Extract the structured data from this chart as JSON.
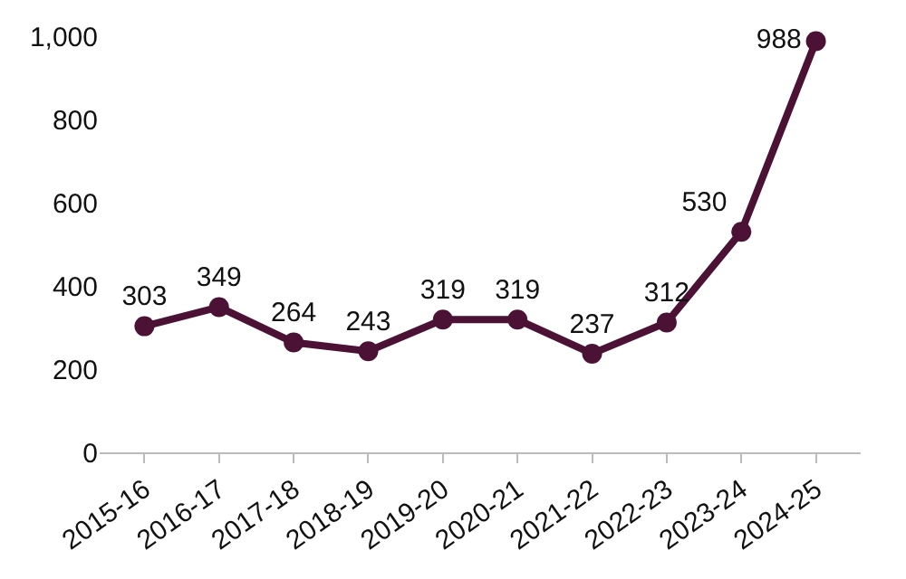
{
  "chart_data": {
    "type": "line",
    "categories": [
      "2015-16",
      "2016-17",
      "2017-18",
      "2018-19",
      "2019-20",
      "2020-21",
      "2021-22",
      "2022-23",
      "2023-24",
      "2024-25"
    ],
    "series": [
      {
        "color": "#4b1236",
        "values": [
          303,
          349,
          264,
          243,
          319,
          319,
          237,
          312,
          530,
          988
        ]
      }
    ],
    "ylim": [
      0,
      1000
    ],
    "yticks": [
      0,
      200,
      400,
      600,
      800,
      {
        "value": 1000,
        "label": "1,000"
      }
    ],
    "marker": "circle",
    "line_style": "solid",
    "data_labels": true
  }
}
